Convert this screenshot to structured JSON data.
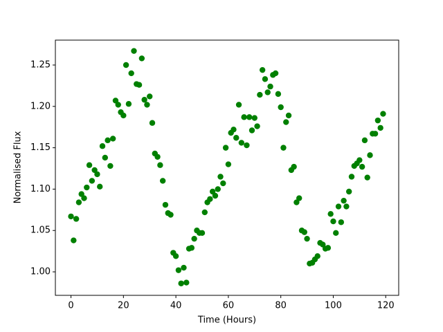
{
  "chart_data": {
    "type": "scatter",
    "xlabel": "Time (Hours)",
    "ylabel": "Normalised Flux",
    "color": "#008000",
    "xlim": [
      -5.95,
      124.95
    ],
    "ylim": [
      0.9716,
      1.2801
    ],
    "xticks": [
      0,
      20,
      40,
      60,
      80,
      100,
      120
    ],
    "yticks": [
      {
        "value": 1,
        "label": "1.00"
      },
      1.05,
      {
        "value": 1.1,
        "label": "1.10"
      },
      1.15,
      {
        "value": 1.2,
        "label": "1.20"
      },
      1.25
    ],
    "x": [
      0,
      1,
      2,
      3,
      4,
      5,
      6,
      7,
      8,
      9,
      10,
      11,
      12,
      13,
      14,
      15,
      16,
      17,
      18,
      19,
      20,
      21,
      22,
      23,
      24,
      25,
      26,
      27,
      28,
      29,
      30,
      31,
      32,
      33,
      34,
      35,
      36,
      37,
      38,
      39,
      40,
      41,
      42,
      43,
      44,
      45,
      46,
      47,
      48,
      49,
      50,
      51,
      52,
      53,
      54,
      55,
      56,
      57,
      58,
      59,
      60,
      61,
      62,
      63,
      64,
      65,
      66,
      67,
      68,
      69,
      70,
      71,
      72,
      73,
      74,
      75,
      76,
      77,
      78,
      79,
      80,
      81,
      82,
      83,
      84,
      85,
      86,
      87,
      88,
      89,
      90,
      91,
      92,
      93,
      94,
      95,
      96,
      97,
      98,
      99,
      100,
      101,
      102,
      103,
      104,
      105,
      106,
      107,
      108,
      109,
      110,
      111,
      112,
      113,
      114,
      115,
      116,
      117,
      118,
      119
    ],
    "values": [
      1.067,
      1.038,
      1.064,
      1.084,
      1.094,
      1.089,
      1.102,
      1.129,
      1.11,
      1.123,
      1.118,
      1.103,
      1.152,
      1.138,
      1.159,
      1.128,
      1.161,
      1.207,
      1.202,
      1.193,
      1.189,
      1.25,
      1.203,
      1.24,
      1.267,
      1.227,
      1.226,
      1.258,
      1.208,
      1.202,
      1.212,
      1.18,
      1.143,
      1.139,
      1.129,
      1.11,
      1.081,
      1.071,
      1.069,
      1.023,
      1.019,
      1.002,
      0.986,
      1.005,
      0.987,
      1.028,
      1.029,
      1.04,
      1.05,
      1.047,
      1.047,
      1.072,
      1.084,
      1.088,
      1.097,
      1.092,
      1.1,
      1.115,
      1.107,
      1.15,
      1.13,
      1.168,
      1.172,
      1.162,
      1.202,
      1.156,
      1.187,
      1.153,
      1.187,
      1.171,
      1.186,
      1.176,
      1.214,
      1.244,
      1.233,
      1.217,
      1.224,
      1.238,
      1.24,
      1.215,
      1.199,
      1.15,
      1.181,
      1.189,
      1.123,
      1.127,
      1.084,
      1.089,
      1.05,
      1.048,
      1.04,
      1.01,
      1.011,
      1.015,
      1.019,
      1.035,
      1.033,
      1.028,
      1.029,
      1.07,
      1.061,
      1.047,
      1.079,
      1.06,
      1.086,
      1.079,
      1.097,
      1.115,
      1.128,
      1.131,
      1.135,
      1.127,
      1.159,
      1.114,
      1.141,
      1.167,
      1.167,
      1.183,
      1.174,
      1.191
    ]
  }
}
